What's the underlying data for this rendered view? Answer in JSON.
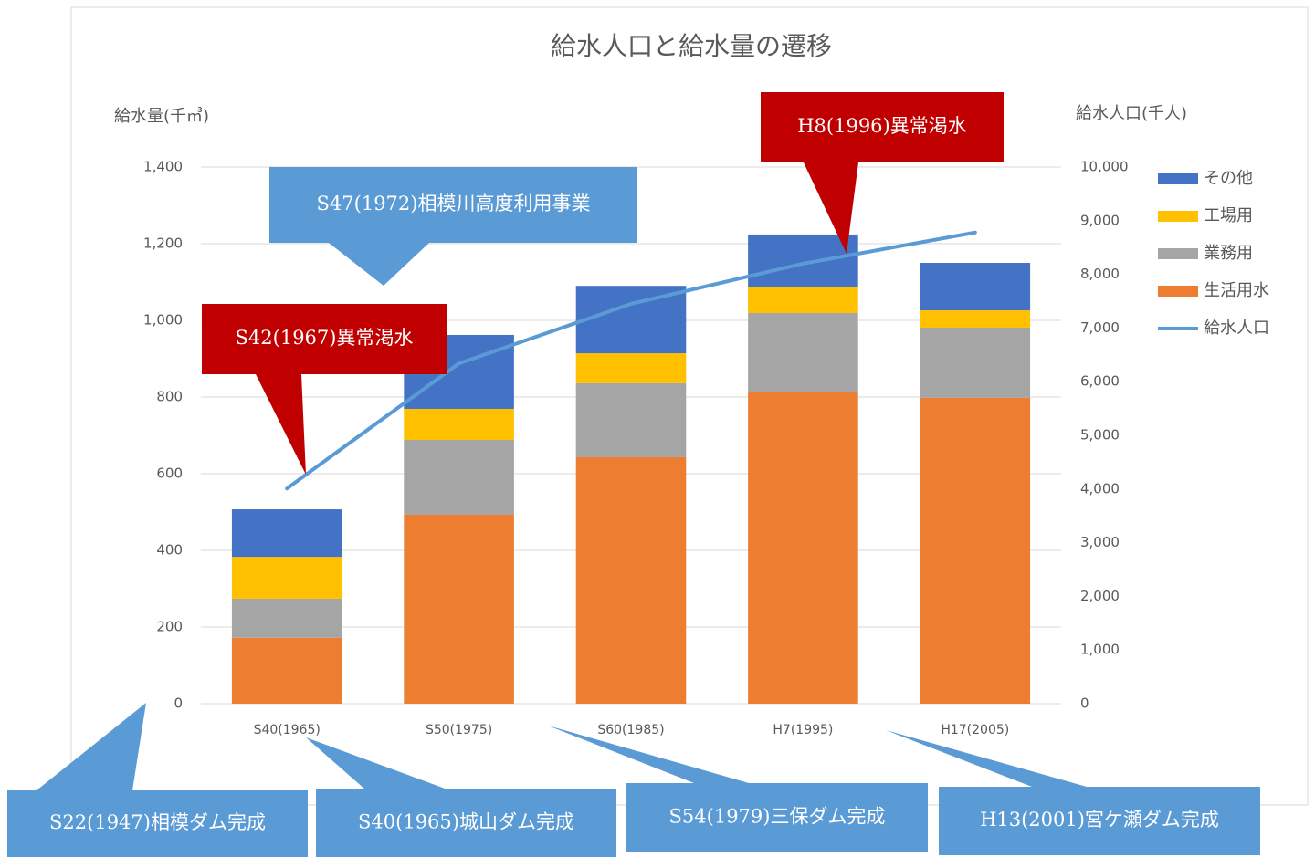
{
  "chart_data": {
    "type": "bar",
    "title": "給水人口と給水量の遷移",
    "y_label": "給水量(千㎥)",
    "y2_label": "給水人口(千人)",
    "categories": [
      "S40(1965)",
      "S50(1975)",
      "S60(1985)",
      "H7(1995)",
      "H17(2005)"
    ],
    "stacked": true,
    "series": [
      {
        "name": "生活用水",
        "color": "#ed7d31",
        "values": [
          172,
          493,
          643,
          812,
          798
        ]
      },
      {
        "name": "業務用",
        "color": "#a5a5a5",
        "values": [
          102,
          195,
          193,
          207,
          183
        ]
      },
      {
        "name": "工場用",
        "color": "#ffc000",
        "values": [
          109,
          81,
          78,
          69,
          45
        ]
      },
      {
        "name": "その他",
        "color": "#4472c4",
        "values": [
          124,
          193,
          176,
          136,
          124
        ]
      },
      {
        "name": "給水人口",
        "color": "#5b9bd5",
        "type": "line",
        "axis": "y2",
        "values": [
          4010,
          6340,
          7450,
          8200,
          8780
        ]
      }
    ],
    "ylim": [
      0,
      1400
    ],
    "yticks": [
      0,
      200,
      400,
      600,
      800,
      {
        "value": 1000,
        "label": "1,000"
      },
      {
        "value": 1200,
        "label": "1,200"
      },
      {
        "value": 1400,
        "label": "1,400"
      }
    ],
    "y2lim": [
      0,
      10000
    ],
    "y2ticks": [
      0,
      {
        "value": 1000,
        "label": "1,000"
      },
      {
        "value": 2000,
        "label": "2,000"
      },
      {
        "value": 3000,
        "label": "3,000"
      },
      {
        "value": 4000,
        "label": "4,000"
      },
      {
        "value": 5000,
        "label": "5,000"
      },
      {
        "value": 6000,
        "label": "6,000"
      },
      {
        "value": 7000,
        "label": "7,000"
      },
      {
        "value": 8000,
        "label": "8,000"
      },
      {
        "value": 9000,
        "label": "9,000"
      },
      {
        "value": 10000,
        "label": "10,000"
      }
    ],
    "grid": true,
    "legend": "right",
    "annotations": [
      "S42(1967)異常渇水",
      "H8(1996)異常渇水",
      "S47(1972)相模川高度利用事業",
      "S22(1947)相模ダム完成",
      "S40(1965)城山ダム完成",
      "S54(1979)三保ダム完成",
      "H13(2001)宮ケ瀬ダム完成"
    ]
  }
}
